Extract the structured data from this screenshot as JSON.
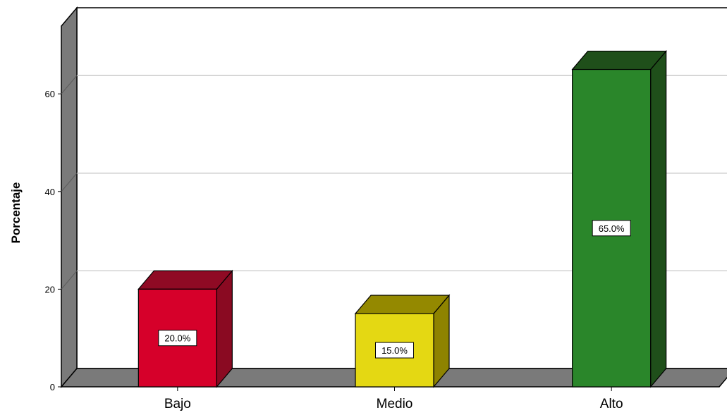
{
  "chart_data": {
    "type": "bar",
    "categories": [
      "Bajo",
      "Medio",
      "Alto"
    ],
    "values": [
      20.0,
      15.0,
      65.0
    ],
    "data_labels": [
      "20.0%",
      "15.0%",
      "65.0%"
    ],
    "title": "",
    "xlabel": "",
    "ylabel": "Porcentaje",
    "ylim": [
      0,
      73
    ],
    "yticks": [
      0,
      20,
      40,
      60
    ],
    "grid": true,
    "three_d": true,
    "colors": {
      "bars": [
        "#d6002a",
        "#e4d813",
        "#2a862a"
      ],
      "bar_sides": [
        "#8a0a22",
        "#8e8300",
        "#1f4f1a"
      ],
      "bar_tops": [
        "#8f0a24",
        "#948900",
        "#1f4f1a"
      ],
      "wall": "#7a7a7a",
      "floor": "#7a7a7a",
      "gridline": "#c8c8c8"
    }
  }
}
